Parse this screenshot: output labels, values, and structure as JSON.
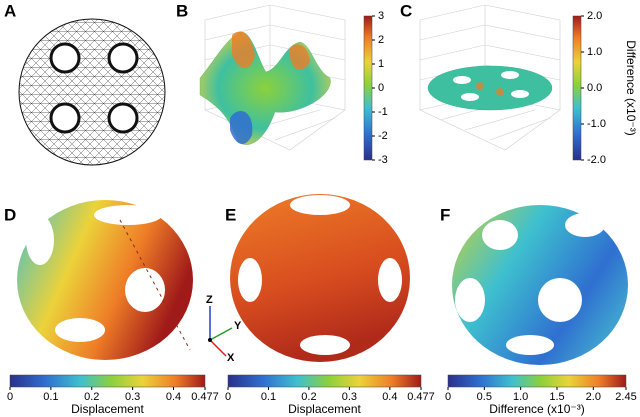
{
  "panel_labels": [
    "A",
    "B",
    "C",
    "D",
    "E",
    "F"
  ],
  "axes": [
    "Z",
    "Y",
    "X"
  ],
  "colorbars": [
    {
      "lim": [
        -3,
        3
      ],
      "ticks": [
        3,
        2,
        1,
        0,
        -1,
        -2,
        -3
      ]
    },
    {
      "lim": [
        -2,
        2
      ],
      "ticks": [
        {
          "value": 2,
          "label": "2.0"
        },
        {
          "value": 1,
          "label": "1.0"
        },
        {
          "value": 0,
          "label": "0.0"
        },
        {
          "value": -1,
          "label": "-1.0"
        },
        {
          "value": -2,
          "label": "-2.0"
        }
      ],
      "label": "Difference (x10⁻³)"
    },
    {
      "lim": [
        0,
        0.477
      ],
      "ticks": [
        0,
        0.1,
        0.2,
        0.3,
        0.4,
        0.477
      ],
      "label": "Displacement"
    },
    {
      "lim": [
        0,
        0.477
      ],
      "ticks": [
        0,
        0.1,
        0.2,
        0.3,
        0.4,
        0.477
      ],
      "label": "Displacement"
    },
    {
      "lim": [
        0,
        2.45
      ],
      "ticks": [
        0,
        0.5,
        {
          "value": 1,
          "label": "1.0"
        },
        1.5,
        {
          "value": 2,
          "label": "2.0"
        },
        2.45
      ],
      "label": "Difference (x10⁻³)"
    }
  ]
}
